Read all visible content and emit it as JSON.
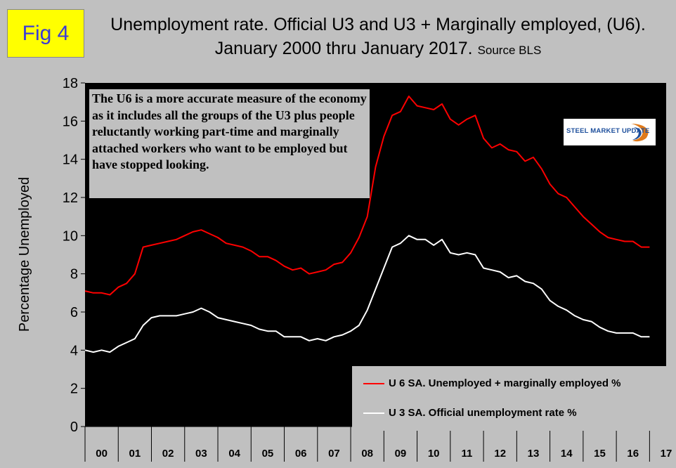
{
  "fig_label": "Fig 4",
  "title_main": "Unemployment rate. Official U3 and U3 + Marginally employed, (U6). January 2000 thru January 2017.",
  "title_source": "Source BLS",
  "annotation": "The U6 is a more accurate measure of the economy as it includes all the groups of the U3 plus people reluctantly working part-time and marginally attached workers who want to be employed but have stopped looking.",
  "logo": "STEEL MARKET UPDATE",
  "colors": {
    "u6": "#ff0000",
    "u3": "#ffffff",
    "plot_bg": "#000000",
    "page_bg": "#c0c0c0"
  },
  "chart_data": {
    "type": "line",
    "ylabel": "Percentage Unemployed",
    "xlabel": "",
    "ylim": [
      0,
      18
    ],
    "yticks": [
      0,
      2,
      4,
      6,
      8,
      10,
      12,
      14,
      16,
      18
    ],
    "x_tick_labels": [
      "00",
      "01",
      "02",
      "03",
      "04",
      "05",
      "06",
      "07",
      "08",
      "09",
      "10",
      "11",
      "12",
      "13",
      "14",
      "15",
      "16",
      "17"
    ],
    "grid": false,
    "legend_position": "bottom-right",
    "series": [
      {
        "name": "U 6 SA. Unemployed + marginally employed %",
        "color": "#ff0000",
        "x": [
          2000.0,
          2000.25,
          2000.5,
          2000.75,
          2001.0,
          2001.25,
          2001.5,
          2001.75,
          2002.0,
          2002.25,
          2002.5,
          2002.75,
          2003.0,
          2003.25,
          2003.5,
          2003.75,
          2004.0,
          2004.25,
          2004.5,
          2004.75,
          2005.0,
          2005.25,
          2005.5,
          2005.75,
          2006.0,
          2006.25,
          2006.5,
          2006.75,
          2007.0,
          2007.25,
          2007.5,
          2007.75,
          2008.0,
          2008.25,
          2008.5,
          2008.75,
          2009.0,
          2009.25,
          2009.5,
          2009.75,
          2010.0,
          2010.25,
          2010.5,
          2010.75,
          2011.0,
          2011.25,
          2011.5,
          2011.75,
          2012.0,
          2012.25,
          2012.5,
          2012.75,
          2013.0,
          2013.25,
          2013.5,
          2013.75,
          2014.0,
          2014.25,
          2014.5,
          2014.75,
          2015.0,
          2015.25,
          2015.5,
          2015.75,
          2016.0,
          2016.25,
          2016.5,
          2016.75,
          2017.0
        ],
        "values": [
          7.1,
          7.0,
          7.0,
          6.9,
          7.3,
          7.5,
          8.0,
          9.4,
          9.5,
          9.6,
          9.7,
          9.8,
          10.0,
          10.2,
          10.3,
          10.1,
          9.9,
          9.6,
          9.5,
          9.4,
          9.2,
          8.9,
          8.9,
          8.7,
          8.4,
          8.2,
          8.3,
          8.0,
          8.1,
          8.2,
          8.5,
          8.6,
          9.1,
          9.9,
          11.0,
          13.6,
          15.2,
          16.3,
          16.5,
          17.3,
          16.8,
          16.7,
          16.6,
          16.9,
          16.1,
          15.8,
          16.1,
          16.3,
          15.1,
          14.6,
          14.8,
          14.5,
          14.4,
          13.9,
          14.1,
          13.5,
          12.7,
          12.2,
          12.0,
          11.5,
          11.0,
          10.6,
          10.2,
          9.9,
          9.8,
          9.7,
          9.7,
          9.4,
          9.4
        ]
      },
      {
        "name": "U 3 SA. Official unemployment rate %",
        "color": "#ffffff",
        "x": [
          2000.0,
          2000.25,
          2000.5,
          2000.75,
          2001.0,
          2001.25,
          2001.5,
          2001.75,
          2002.0,
          2002.25,
          2002.5,
          2002.75,
          2003.0,
          2003.25,
          2003.5,
          2003.75,
          2004.0,
          2004.25,
          2004.5,
          2004.75,
          2005.0,
          2005.25,
          2005.5,
          2005.75,
          2006.0,
          2006.25,
          2006.5,
          2006.75,
          2007.0,
          2007.25,
          2007.5,
          2007.75,
          2008.0,
          2008.25,
          2008.5,
          2008.75,
          2009.0,
          2009.25,
          2009.5,
          2009.75,
          2010.0,
          2010.25,
          2010.5,
          2010.75,
          2011.0,
          2011.25,
          2011.5,
          2011.75,
          2012.0,
          2012.25,
          2012.5,
          2012.75,
          2013.0,
          2013.25,
          2013.5,
          2013.75,
          2014.0,
          2014.25,
          2014.5,
          2014.75,
          2015.0,
          2015.25,
          2015.5,
          2015.75,
          2016.0,
          2016.25,
          2016.5,
          2016.75,
          2017.0
        ],
        "values": [
          4.0,
          3.9,
          4.0,
          3.9,
          4.2,
          4.4,
          4.6,
          5.3,
          5.7,
          5.8,
          5.8,
          5.8,
          5.9,
          6.0,
          6.2,
          6.0,
          5.7,
          5.6,
          5.5,
          5.4,
          5.3,
          5.1,
          5.0,
          5.0,
          4.7,
          4.7,
          4.7,
          4.5,
          4.6,
          4.5,
          4.7,
          4.8,
          5.0,
          5.3,
          6.1,
          7.2,
          8.3,
          9.4,
          9.6,
          10.0,
          9.8,
          9.8,
          9.5,
          9.8,
          9.1,
          9.0,
          9.1,
          9.0,
          8.3,
          8.2,
          8.1,
          7.8,
          7.9,
          7.6,
          7.5,
          7.2,
          6.6,
          6.3,
          6.1,
          5.8,
          5.6,
          5.5,
          5.2,
          5.0,
          4.9,
          4.9,
          4.9,
          4.7,
          4.7
        ]
      }
    ]
  }
}
